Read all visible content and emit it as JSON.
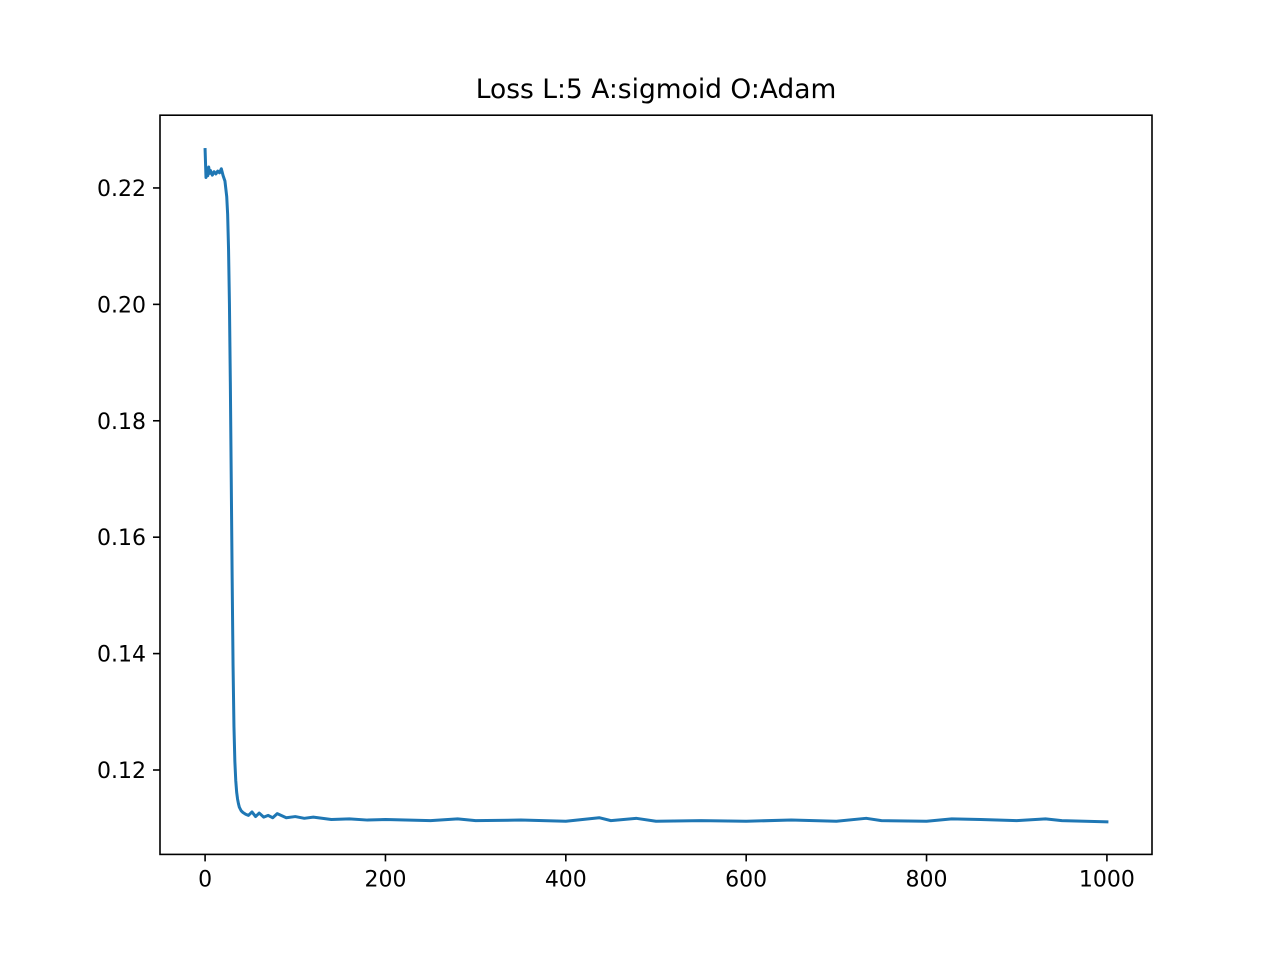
{
  "chart_data": {
    "type": "line",
    "title": "Loss L:5 A:sigmoid O:Adam",
    "xlabel": "",
    "ylabel": "",
    "xlim": [
      -50,
      1050
    ],
    "ylim": [
      0.1055,
      0.2325
    ],
    "grid": false,
    "legend": "none",
    "x_ticks": [
      0,
      200,
      400,
      600,
      800,
      1000
    ],
    "x_tick_labels": [
      "0",
      "200",
      "400",
      "600",
      "800",
      "1000"
    ],
    "y_ticks": [
      0.12,
      0.14,
      0.16,
      0.18,
      0.2,
      0.22
    ],
    "y_tick_labels": [
      "0.12",
      "0.14",
      "0.16",
      "0.18",
      "0.20",
      "0.22"
    ],
    "series": [
      {
        "color": "#1f77b4",
        "x": [
          0,
          1,
          2,
          3,
          4,
          5,
          6,
          8,
          10,
          12,
          14,
          16,
          18,
          20,
          22,
          24,
          25,
          26,
          27,
          28,
          29,
          30,
          31,
          32,
          33,
          34,
          35,
          36,
          37,
          38,
          40,
          42,
          45,
          48,
          52,
          56,
          60,
          65,
          70,
          75,
          80,
          90,
          100,
          110,
          120,
          140,
          160,
          180,
          200,
          250,
          280,
          300,
          350,
          400,
          437,
          450,
          478,
          500,
          550,
          600,
          650,
          700,
          733,
          750,
          800,
          828,
          860,
          900,
          932,
          950,
          1000
        ],
        "y": [
          0.2266,
          0.2218,
          0.2232,
          0.2221,
          0.2236,
          0.2225,
          0.223,
          0.2222,
          0.2228,
          0.2224,
          0.2229,
          0.2226,
          0.2233,
          0.2221,
          0.2212,
          0.2185,
          0.2155,
          0.2095,
          0.2,
          0.1865,
          0.17,
          0.153,
          0.138,
          0.1275,
          0.1215,
          0.1182,
          0.1162,
          0.115,
          0.1142,
          0.1136,
          0.113,
          0.1127,
          0.1124,
          0.1122,
          0.1128,
          0.112,
          0.1126,
          0.1119,
          0.1122,
          0.1118,
          0.1125,
          0.1118,
          0.112,
          0.1117,
          0.1119,
          0.1115,
          0.1116,
          0.1114,
          0.1115,
          0.1113,
          0.1116,
          0.1113,
          0.1114,
          0.1112,
          0.1118,
          0.1113,
          0.1117,
          0.1112,
          0.1113,
          0.1112,
          0.1114,
          0.1112,
          0.1117,
          0.1113,
          0.1112,
          0.1116,
          0.1115,
          0.1113,
          0.1116,
          0.1113,
          0.1111
        ]
      }
    ]
  }
}
